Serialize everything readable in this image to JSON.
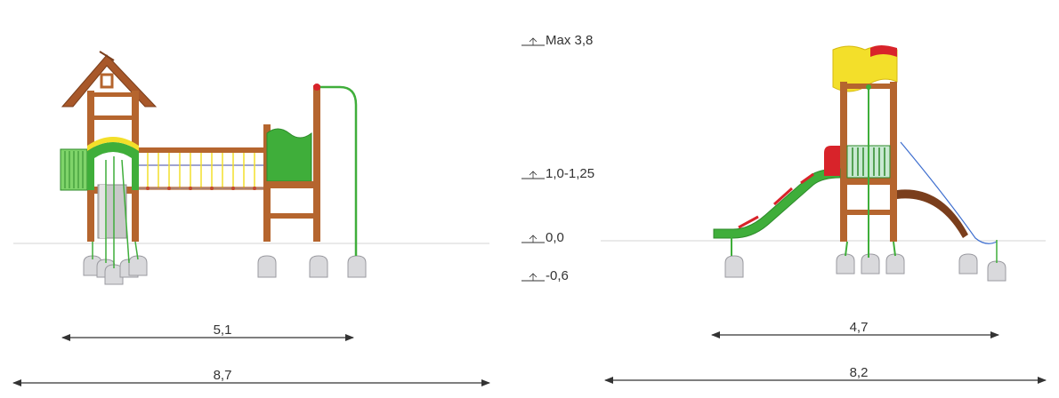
{
  "levels": [
    {
      "id": "max",
      "label": "Max 3,8"
    },
    {
      "id": "platform",
      "label": "1,0-1,25"
    },
    {
      "id": "ground",
      "label": "0,0"
    },
    {
      "id": "foundation",
      "label": "-0,6"
    }
  ],
  "dimensions": {
    "left_structure_width": "5,1",
    "left_safety_width": "8,7",
    "right_structure_width": "4,7",
    "right_safety_width": "8,2"
  },
  "colors": {
    "wood": "#b5652e",
    "wood_dark": "#8a4620",
    "green": "#3fae3a",
    "light_green": "#7fd46a",
    "yellow": "#f3df2a",
    "red": "#d8232a",
    "steel_grey": "#b9b9b9",
    "concrete": "#d9d9dc",
    "line": "#333333"
  }
}
